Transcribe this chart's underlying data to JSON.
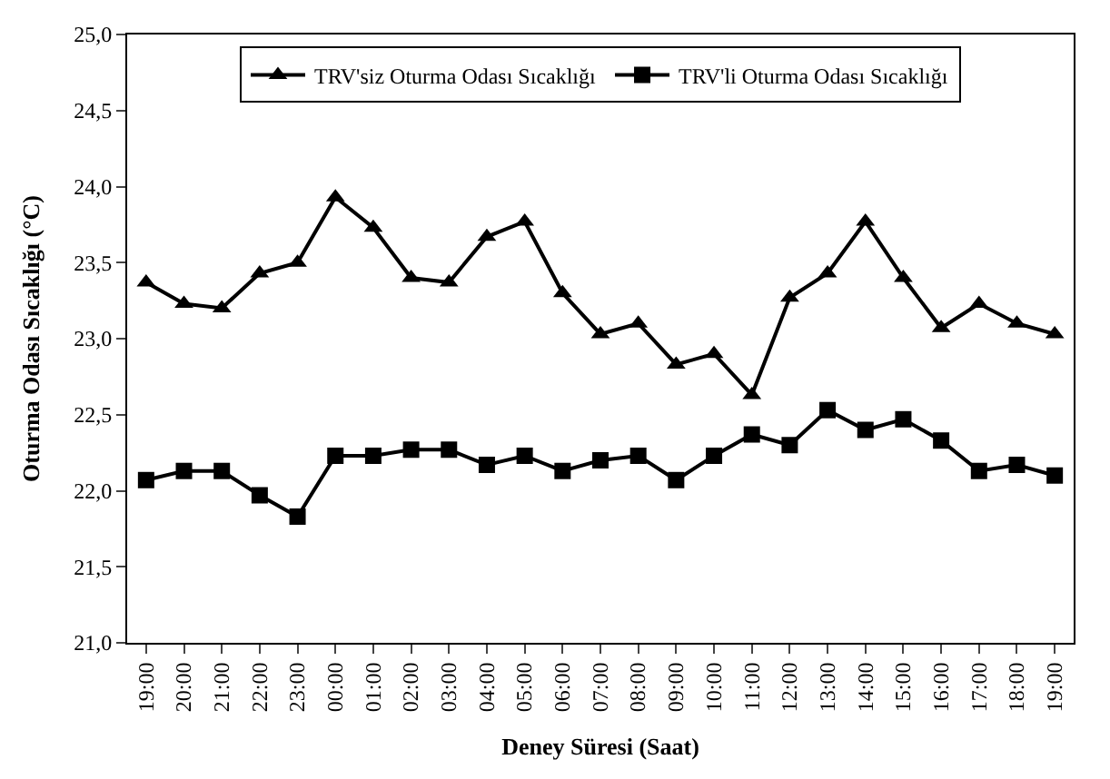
{
  "chart_data": {
    "type": "line",
    "xlabel": "Deney Süresi (Saat)",
    "ylabel": "Oturma Odası Sıcaklığı (°C)",
    "categories": [
      "19:00",
      "20:00",
      "21:00",
      "22:00",
      "23:00",
      "00:00",
      "01:00",
      "02:00",
      "03:00",
      "04:00",
      "05:00",
      "06:00",
      "07:00",
      "08:00",
      "09:00",
      "10:00",
      "11:00",
      "12:00",
      "13:00",
      "14:00",
      "15:00",
      "16:00",
      "17:00",
      "18:00",
      "19:00"
    ],
    "series": [
      {
        "name": "TRV'siz Oturma Odası Sıcaklığı",
        "color": "#000000",
        "marker": "triangle",
        "values": [
          23.37,
          23.23,
          23.2,
          23.43,
          23.5,
          23.93,
          23.73,
          23.4,
          23.37,
          23.67,
          23.77,
          23.3,
          23.03,
          23.1,
          22.83,
          22.9,
          22.63,
          23.27,
          23.43,
          23.77,
          23.4,
          23.07,
          23.23,
          23.1,
          23.03
        ]
      },
      {
        "name": "TRV'li Oturma Odası Sıcaklığı",
        "color": "#000000",
        "marker": "square",
        "values": [
          22.07,
          22.13,
          22.13,
          21.97,
          21.83,
          22.23,
          22.23,
          22.27,
          22.27,
          22.17,
          22.23,
          22.13,
          22.2,
          22.23,
          22.07,
          22.23,
          22.37,
          22.3,
          22.53,
          22.4,
          22.47,
          22.33,
          22.13,
          22.17,
          22.1
        ]
      }
    ],
    "ylim": [
      21.0,
      25.0
    ],
    "yticks": [
      {
        "value": 21.0,
        "label": "21,0"
      },
      {
        "value": 21.5,
        "label": "21,5"
      },
      {
        "value": 22.0,
        "label": "22,0"
      },
      {
        "value": 22.5,
        "label": "22,5"
      },
      {
        "value": 23.0,
        "label": "23,0"
      },
      {
        "value": 23.5,
        "label": "23,5"
      },
      {
        "value": 24.0,
        "label": "24,0"
      },
      {
        "value": 24.5,
        "label": "24,5"
      },
      {
        "value": 25.0,
        "label": "25,0"
      }
    ],
    "legend": "top",
    "line_style": "solid"
  }
}
